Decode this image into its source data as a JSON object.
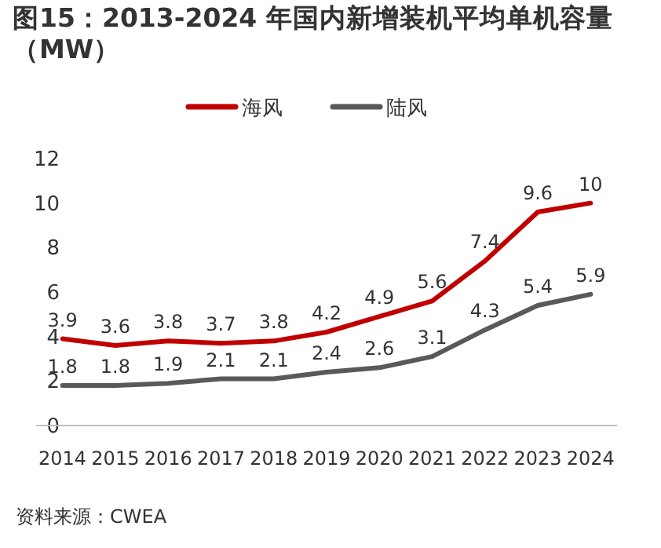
{
  "chart_data": {
    "type": "line",
    "title": "图15：2013-2024 年国内新增装机平均单机容量（MW）",
    "categories": [
      "2014",
      "2015",
      "2016",
      "2017",
      "2018",
      "2019",
      "2020",
      "2021",
      "2022",
      "2023",
      "2024"
    ],
    "series": [
      {
        "name": "海风",
        "color": "#c00000",
        "values": [
          3.9,
          3.6,
          3.8,
          3.7,
          3.8,
          4.2,
          4.9,
          5.6,
          7.4,
          9.6,
          10
        ]
      },
      {
        "name": "陆风",
        "color": "#595959",
        "values": [
          1.8,
          1.8,
          1.9,
          2.1,
          2.1,
          2.4,
          2.6,
          3.1,
          4.3,
          5.4,
          5.9
        ]
      }
    ],
    "ylim": [
      0,
      12
    ],
    "yticks": [
      0,
      2,
      4,
      6,
      8,
      10,
      12
    ],
    "legend": "top",
    "data_labels": true,
    "annotations": [
      "资料来源：CWEA"
    ]
  }
}
